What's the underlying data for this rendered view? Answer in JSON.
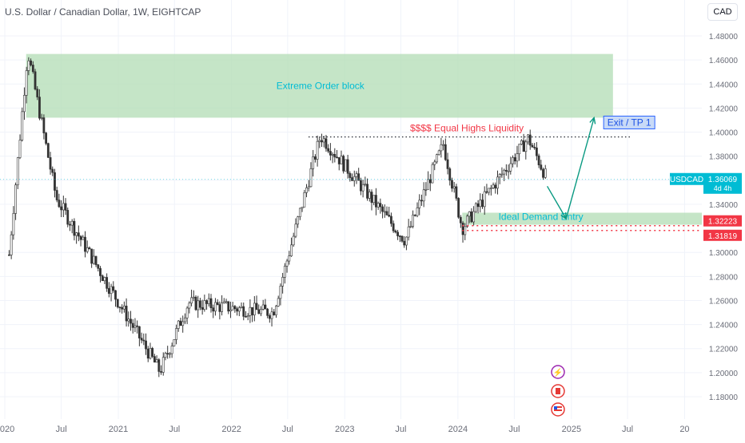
{
  "header": {
    "title": "U.S. Dollar / Canadian Dollar, 1W, EIGHTCAP",
    "currency_button": "CAD"
  },
  "colors": {
    "up_candle": "#333333",
    "down_candle": "#333333",
    "zone_fill": "#b7dfb9",
    "zone_text": "#00bcd4",
    "liquidity_text": "#f23645",
    "path_arrow": "#089981",
    "price_badge": "#00bcd4",
    "low_badge": "#f23645"
  },
  "icons": [
    "lightning-icon",
    "canada-flag-icon",
    "us-flag-icon"
  ],
  "chart_data": {
    "type": "candlestick",
    "symbol": "USDCAD",
    "timeframe": "1W",
    "ylim": [
      1.165,
      1.488
    ],
    "y_ticks": [
      "1.48000",
      "1.46000",
      "1.44000",
      "1.42000",
      "1.40000",
      "1.38000",
      "1.36000",
      "1.34000",
      "1.30000",
      "1.28000",
      "1.26000",
      "1.24000",
      "1.22000",
      "1.20000",
      "1.18000"
    ],
    "x_ticks": [
      "2020",
      "Jul",
      "2021",
      "Jul",
      "2022",
      "Jul",
      "2023",
      "Jul",
      "2024",
      "Jul",
      "2025",
      "Jul",
      "20"
    ],
    "key_points": [
      {
        "date": "2020-01",
        "price": 1.298
      },
      {
        "date": "2020-03",
        "price": 1.467
      },
      {
        "date": "2020-06",
        "price": 1.345
      },
      {
        "date": "2021-05",
        "price": 1.201
      },
      {
        "date": "2021-08",
        "price": 1.258
      },
      {
        "date": "2022-05",
        "price": 1.25
      },
      {
        "date": "2022-10",
        "price": 1.397
      },
      {
        "date": "2023-07",
        "price": 1.31
      },
      {
        "date": "2023-11",
        "price": 1.39
      },
      {
        "date": "2024-01",
        "price": 1.32
      },
      {
        "date": "2024-08",
        "price": 1.395
      },
      {
        "date": "2024-10",
        "price": 1.3607
      }
    ],
    "current_price": {
      "label": "USDCAD",
      "value": "1.36069",
      "countdown": "4d 4h"
    },
    "levels": [
      {
        "label": "1.32223",
        "value": 1.32223
      },
      {
        "label": "1.31819",
        "value": 1.31819
      }
    ],
    "annotations": {
      "order_block": {
        "label": "Extreme Order block",
        "top": 1.465,
        "bottom": 1.412
      },
      "equal_highs": {
        "label": "$$$$ Equal Highs Liquidity",
        "value": 1.396
      },
      "demand_zone": {
        "label": "Ideal Demand Entry",
        "top": 1.333,
        "bottom": 1.323
      },
      "exit_label": "Exit / TP 1"
    },
    "projection": [
      {
        "date": "2024-10",
        "price": 1.355
      },
      {
        "date": "2024-12",
        "price": 1.328
      },
      {
        "date": "2025-03",
        "price": 1.412
      }
    ]
  }
}
